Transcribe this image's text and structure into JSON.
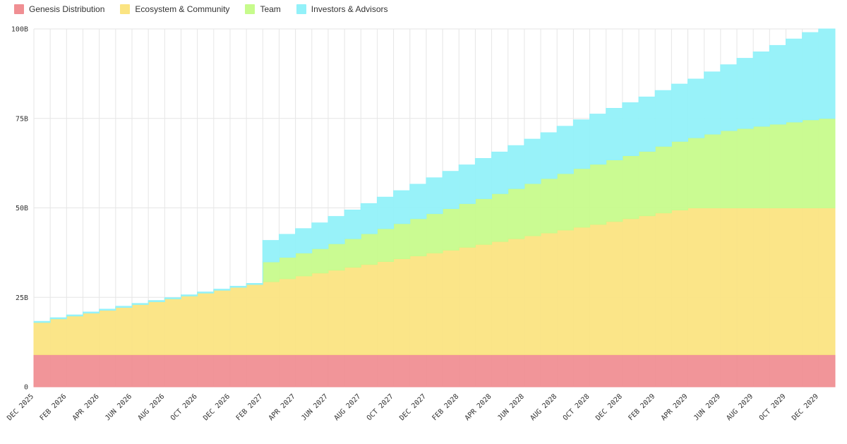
{
  "chart_data": {
    "type": "area",
    "title": "",
    "xlabel": "",
    "ylabel": "",
    "ylim": [
      0,
      100
    ],
    "y_unit": "B",
    "y_ticks": [
      "0",
      "25B",
      "50B",
      "75B",
      "100B"
    ],
    "x_tick_labels": [
      "DEC 2025",
      "FEB 2026",
      "APR 2026",
      "JUN 2026",
      "AUG 2026",
      "OCT 2026",
      "DEC 2026",
      "FEB 2027",
      "APR 2027",
      "JUN 2027",
      "AUG 2027",
      "OCT 2027",
      "DEC 2027",
      "FEB 2028",
      "APR 2028",
      "JUN 2028",
      "AUG 2028",
      "OCT 2028",
      "DEC 2028",
      "FEB 2029",
      "APR 2029",
      "JUN 2029",
      "AUG 2029",
      "OCT 2029",
      "DEC 2029"
    ],
    "step": true,
    "stacked": true,
    "grid": true,
    "legend_position": "top-left",
    "series": [
      {
        "name": "Genesis Distribution",
        "color": "#f08f93",
        "values": [
          9,
          9,
          9,
          9,
          9,
          9,
          9,
          9,
          9,
          9,
          9,
          9,
          9,
          9,
          9,
          9,
          9,
          9,
          9,
          9,
          9,
          9,
          9,
          9,
          9,
          9,
          9,
          9,
          9,
          9,
          9,
          9,
          9,
          9,
          9,
          9,
          9,
          9,
          9,
          9,
          9,
          9,
          9,
          9,
          9,
          9,
          9,
          9,
          9
        ]
      },
      {
        "name": "Ecosystem & Community",
        "color": "#fbe482",
        "values": [
          9,
          10,
          10.8,
          11.6,
          12.4,
          13.2,
          14,
          14.8,
          15.6,
          16.4,
          17.2,
          18,
          18.8,
          19.6,
          20.4,
          21.2,
          22,
          22.8,
          23.6,
          24.4,
          25.2,
          26,
          26.8,
          27.6,
          28.4,
          29.2,
          30,
          30.8,
          31.6,
          32.4,
          33.2,
          34,
          34.8,
          35.6,
          36.4,
          37.2,
          38,
          38.8,
          39.6,
          40.4,
          41,
          41,
          41,
          41,
          41,
          41,
          41,
          41,
          41
        ]
      },
      {
        "name": "Team",
        "color": "#c7fb8c",
        "values": [
          0,
          0,
          0,
          0,
          0,
          0,
          0,
          0,
          0,
          0,
          0,
          0,
          0,
          0,
          5.5,
          6,
          6.4,
          6.8,
          7.4,
          8,
          8.6,
          9.2,
          9.8,
          10.4,
          11,
          11.6,
          12.2,
          12.8,
          13.4,
          14,
          14.6,
          15.2,
          15.8,
          16.4,
          16.8,
          17.2,
          17.6,
          18,
          18.6,
          19.2,
          19.6,
          20.6,
          21.6,
          22.2,
          22.8,
          23.4,
          24,
          24.6,
          25
        ]
      },
      {
        "name": "Investors & Advisors",
        "color": "#92f1f9",
        "values": [
          0.3,
          0.3,
          0.3,
          0.3,
          0.3,
          0.3,
          0.3,
          0.3,
          0.3,
          0.3,
          0.3,
          0.3,
          0.3,
          0.3,
          6,
          6.4,
          6.8,
          7.2,
          7.6,
          8,
          8.4,
          8.8,
          9.2,
          9.6,
          10,
          10.4,
          10.8,
          11.2,
          11.6,
          12,
          12.4,
          12.8,
          13.2,
          13.6,
          14,
          14.4,
          14.8,
          15.2,
          15.6,
          16,
          16.4,
          17.4,
          18.4,
          19.6,
          20.8,
          22,
          23.2,
          24.4,
          25
        ]
      }
    ]
  }
}
